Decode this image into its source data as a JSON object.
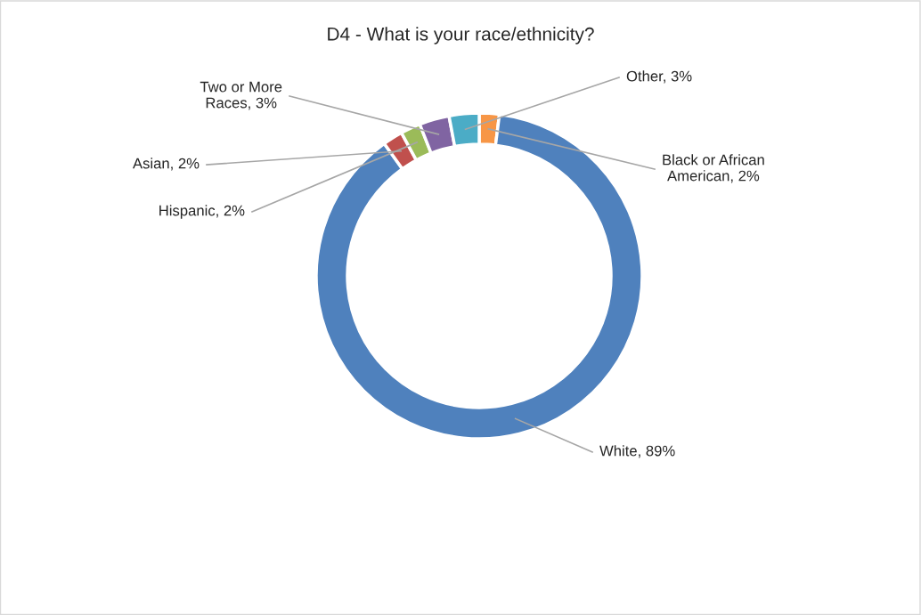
{
  "chart_data": {
    "type": "donut",
    "title": "D4 - What is your race/ethnicity?",
    "categories": [
      "Black or African American",
      "White",
      "Asian",
      "Hispanic",
      "Two or More Races",
      "Other"
    ],
    "values": [
      2,
      89,
      2,
      2,
      3,
      3
    ],
    "value_labels": [
      "2%",
      "89%",
      "2%",
      "2%",
      "3%",
      "3%"
    ],
    "colors": [
      "#f79646",
      "#4f81bd",
      "#c0504d",
      "#9bbb59",
      "#8064a2",
      "#4bacc6"
    ],
    "legend": false
  }
}
